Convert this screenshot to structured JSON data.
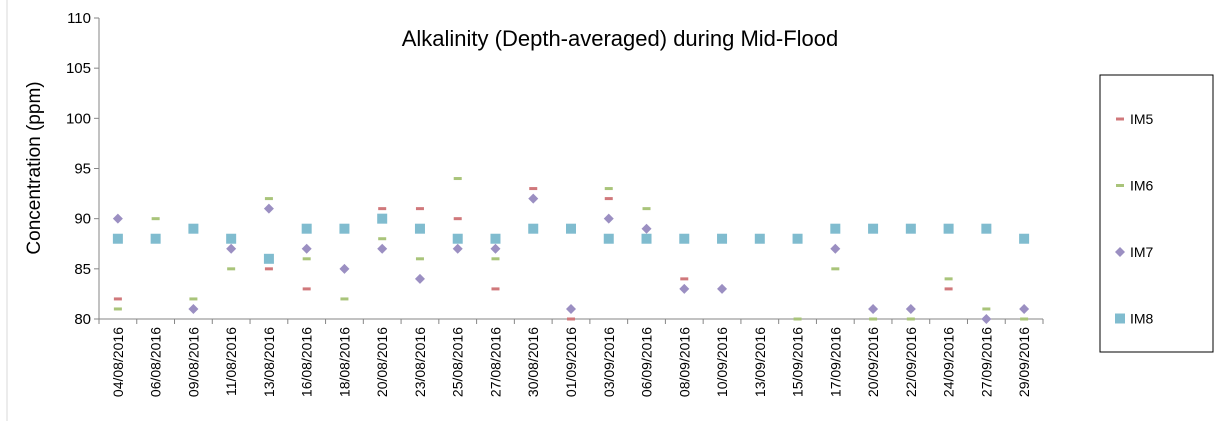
{
  "chart_data": {
    "type": "scatter",
    "title": "Alkalinity (Depth-averaged) during Mid-Flood",
    "y_label": "Concentration (ppm)",
    "categories": [
      "04/08/2016",
      "06/08/2016",
      "09/08/2016",
      "11/08/2016",
      "13/08/2016",
      "16/08/2016",
      "18/08/2016",
      "20/08/2016",
      "23/08/2016",
      "25/08/2016",
      "27/08/2016",
      "30/08/2016",
      "01/09/2016",
      "03/09/2016",
      "06/09/2016",
      "08/09/2016",
      "10/09/2016",
      "13/09/2016",
      "15/09/2016",
      "17/09/2016",
      "20/09/2016",
      "22/09/2016",
      "24/09/2016",
      "27/09/2016",
      "29/09/2016"
    ],
    "series": [
      {
        "name": "IM5",
        "color": "#d0787b",
        "marker": "dash",
        "values": [
          82,
          null,
          null,
          null,
          85,
          83,
          null,
          91,
          91,
          90,
          83,
          93,
          80,
          92,
          null,
          84,
          null,
          null,
          null,
          null,
          null,
          null,
          83,
          null,
          null
        ]
      },
      {
        "name": "IM6",
        "color": "#a9c47a",
        "marker": "dash",
        "values": [
          81,
          90,
          82,
          85,
          92,
          86,
          82,
          88,
          86,
          94,
          86,
          null,
          null,
          93,
          91,
          null,
          null,
          null,
          80,
          85,
          80,
          80,
          84,
          81,
          80
        ]
      },
      {
        "name": "IM7",
        "color": "#9b8fc2",
        "marker": "diamond",
        "values": [
          90,
          null,
          81,
          87,
          91,
          87,
          85,
          87,
          84,
          87,
          87,
          92,
          81,
          90,
          89,
          83,
          83,
          null,
          null,
          87,
          81,
          81,
          null,
          80,
          81
        ]
      },
      {
        "name": "IM8",
        "color": "#80bccf",
        "marker": "square",
        "values": [
          88,
          88,
          89,
          88,
          86,
          89,
          89,
          90,
          89,
          88,
          88,
          89,
          89,
          88,
          88,
          88,
          88,
          88,
          88,
          89,
          89,
          89,
          89,
          89,
          88
        ]
      }
    ],
    "ylim": [
      80,
      110
    ],
    "yticks": [
      80,
      85,
      90,
      95,
      100,
      105,
      110
    ],
    "legend": "right"
  }
}
